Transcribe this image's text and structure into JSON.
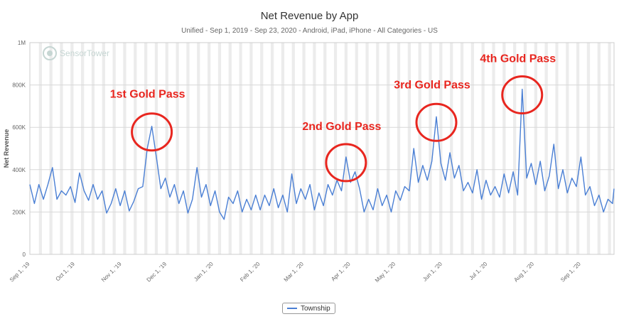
{
  "chart_data": {
    "type": "line",
    "title": "Net Revenue by App",
    "subtitle": "Unified - Sep 1, 2019 - Sep 23, 2020 - Android, iPad, iPhone - All Categories - US",
    "ylabel": "Net Revenue",
    "xlabel": "",
    "ylim": [
      0,
      1000000
    ],
    "yticks": [
      {
        "value": 0,
        "label": "0"
      },
      {
        "value": 200000,
        "label": "200K"
      },
      {
        "value": 400000,
        "label": "400K"
      },
      {
        "value": 600000,
        "label": "600K"
      },
      {
        "value": 800000,
        "label": "800K"
      },
      {
        "value": 1000000,
        "label": "1M"
      }
    ],
    "xlim": [
      "2019-09-01",
      "2020-09-23"
    ],
    "xticks": [
      {
        "date": "2019-09-01",
        "label": "Sep 1, '19"
      },
      {
        "date": "2019-10-01",
        "label": "Oct 1, '19"
      },
      {
        "date": "2019-11-01",
        "label": "Nov 1, '19"
      },
      {
        "date": "2019-12-01",
        "label": "Dec 1, '19"
      },
      {
        "date": "2020-01-01",
        "label": "Jan 1, '20"
      },
      {
        "date": "2020-02-01",
        "label": "Feb 1, '20"
      },
      {
        "date": "2020-03-01",
        "label": "Mar 1, '20"
      },
      {
        "date": "2020-04-01",
        "label": "Apr 1, '20"
      },
      {
        "date": "2020-05-01",
        "label": "May 1, '20"
      },
      {
        "date": "2020-06-01",
        "label": "Jun 1, '20"
      },
      {
        "date": "2020-07-01",
        "label": "Jul 1, '20"
      },
      {
        "date": "2020-08-01",
        "label": "Aug 1, '20"
      },
      {
        "date": "2020-09-01",
        "label": "Sep 1, '20"
      }
    ],
    "grid": true,
    "weekend_bands": true,
    "legend": "bottom-center",
    "series": [
      {
        "name": "Township",
        "color": "#4a7fd4",
        "points": [
          [
            "2019-09-01",
            330000
          ],
          [
            "2019-09-04",
            240000
          ],
          [
            "2019-09-07",
            330000
          ],
          [
            "2019-09-10",
            260000
          ],
          [
            "2019-09-13",
            330000
          ],
          [
            "2019-09-16",
            410000
          ],
          [
            "2019-09-19",
            260000
          ],
          [
            "2019-09-22",
            300000
          ],
          [
            "2019-09-25",
            280000
          ],
          [
            "2019-09-28",
            320000
          ],
          [
            "2019-10-01",
            245000
          ],
          [
            "2019-10-04",
            385000
          ],
          [
            "2019-10-07",
            300000
          ],
          [
            "2019-10-10",
            255000
          ],
          [
            "2019-10-13",
            330000
          ],
          [
            "2019-10-16",
            260000
          ],
          [
            "2019-10-19",
            300000
          ],
          [
            "2019-10-22",
            195000
          ],
          [
            "2019-10-25",
            240000
          ],
          [
            "2019-10-28",
            310000
          ],
          [
            "2019-10-31",
            230000
          ],
          [
            "2019-11-03",
            300000
          ],
          [
            "2019-11-06",
            205000
          ],
          [
            "2019-11-09",
            250000
          ],
          [
            "2019-11-12",
            310000
          ],
          [
            "2019-11-15",
            320000
          ],
          [
            "2019-11-18",
            500000
          ],
          [
            "2019-11-21",
            605000
          ],
          [
            "2019-11-24",
            460000
          ],
          [
            "2019-11-27",
            310000
          ],
          [
            "2019-11-30",
            360000
          ],
          [
            "2019-12-03",
            270000
          ],
          [
            "2019-12-06",
            330000
          ],
          [
            "2019-12-09",
            240000
          ],
          [
            "2019-12-12",
            300000
          ],
          [
            "2019-12-15",
            195000
          ],
          [
            "2019-12-18",
            260000
          ],
          [
            "2019-12-21",
            410000
          ],
          [
            "2019-12-24",
            270000
          ],
          [
            "2019-12-27",
            330000
          ],
          [
            "2019-12-30",
            230000
          ],
          [
            "2020-01-02",
            300000
          ],
          [
            "2020-01-05",
            200000
          ],
          [
            "2020-01-08",
            165000
          ],
          [
            "2020-01-11",
            270000
          ],
          [
            "2020-01-14",
            240000
          ],
          [
            "2020-01-17",
            300000
          ],
          [
            "2020-01-20",
            200000
          ],
          [
            "2020-01-23",
            260000
          ],
          [
            "2020-01-26",
            210000
          ],
          [
            "2020-01-29",
            280000
          ],
          [
            "2020-02-01",
            210000
          ],
          [
            "2020-02-04",
            280000
          ],
          [
            "2020-02-07",
            230000
          ],
          [
            "2020-02-10",
            310000
          ],
          [
            "2020-02-13",
            220000
          ],
          [
            "2020-02-16",
            280000
          ],
          [
            "2020-02-19",
            200000
          ],
          [
            "2020-02-22",
            380000
          ],
          [
            "2020-02-25",
            240000
          ],
          [
            "2020-02-28",
            310000
          ],
          [
            "2020-03-02",
            260000
          ],
          [
            "2020-03-05",
            330000
          ],
          [
            "2020-03-08",
            210000
          ],
          [
            "2020-03-11",
            290000
          ],
          [
            "2020-03-14",
            230000
          ],
          [
            "2020-03-17",
            330000
          ],
          [
            "2020-03-20",
            280000
          ],
          [
            "2020-03-23",
            350000
          ],
          [
            "2020-03-26",
            300000
          ],
          [
            "2020-03-29",
            460000
          ],
          [
            "2020-04-01",
            340000
          ],
          [
            "2020-04-04",
            390000
          ],
          [
            "2020-04-07",
            310000
          ],
          [
            "2020-04-10",
            200000
          ],
          [
            "2020-04-13",
            260000
          ],
          [
            "2020-04-16",
            210000
          ],
          [
            "2020-04-19",
            310000
          ],
          [
            "2020-04-22",
            230000
          ],
          [
            "2020-04-25",
            280000
          ],
          [
            "2020-04-28",
            200000
          ],
          [
            "2020-05-01",
            300000
          ],
          [
            "2020-05-04",
            255000
          ],
          [
            "2020-05-07",
            320000
          ],
          [
            "2020-05-10",
            300000
          ],
          [
            "2020-05-13",
            500000
          ],
          [
            "2020-05-16",
            340000
          ],
          [
            "2020-05-19",
            420000
          ],
          [
            "2020-05-22",
            350000
          ],
          [
            "2020-05-25",
            440000
          ],
          [
            "2020-05-28",
            650000
          ],
          [
            "2020-05-31",
            430000
          ],
          [
            "2020-06-03",
            350000
          ],
          [
            "2020-06-06",
            480000
          ],
          [
            "2020-06-09",
            360000
          ],
          [
            "2020-06-12",
            420000
          ],
          [
            "2020-06-15",
            300000
          ],
          [
            "2020-06-18",
            340000
          ],
          [
            "2020-06-21",
            290000
          ],
          [
            "2020-06-24",
            400000
          ],
          [
            "2020-06-27",
            260000
          ],
          [
            "2020-06-30",
            350000
          ],
          [
            "2020-07-03",
            280000
          ],
          [
            "2020-07-06",
            320000
          ],
          [
            "2020-07-09",
            270000
          ],
          [
            "2020-07-12",
            380000
          ],
          [
            "2020-07-15",
            290000
          ],
          [
            "2020-07-18",
            390000
          ],
          [
            "2020-07-21",
            280000
          ],
          [
            "2020-07-24",
            780000
          ],
          [
            "2020-07-27",
            360000
          ],
          [
            "2020-07-30",
            430000
          ],
          [
            "2020-08-02",
            330000
          ],
          [
            "2020-08-05",
            440000
          ],
          [
            "2020-08-08",
            300000
          ],
          [
            "2020-08-11",
            370000
          ],
          [
            "2020-08-14",
            520000
          ],
          [
            "2020-08-17",
            310000
          ],
          [
            "2020-08-20",
            400000
          ],
          [
            "2020-08-23",
            290000
          ],
          [
            "2020-08-26",
            360000
          ],
          [
            "2020-08-29",
            320000
          ],
          [
            "2020-09-01",
            460000
          ],
          [
            "2020-09-04",
            280000
          ],
          [
            "2020-09-07",
            320000
          ],
          [
            "2020-09-10",
            230000
          ],
          [
            "2020-09-13",
            280000
          ],
          [
            "2020-09-16",
            200000
          ],
          [
            "2020-09-19",
            260000
          ],
          [
            "2020-09-22",
            240000
          ],
          [
            "2020-09-23",
            310000
          ]
        ]
      }
    ],
    "annotations": [
      {
        "text": "1st Gold Pass",
        "date": "2019-11-21",
        "value": 605000,
        "color": "#e8261f"
      },
      {
        "text": "2nd Gold Pass",
        "date": "2020-03-29",
        "value": 460000,
        "color": "#e8261f"
      },
      {
        "text": "3rd Gold Pass",
        "date": "2020-05-28",
        "value": 650000,
        "color": "#e8261f"
      },
      {
        "text": "4th Gold Pass",
        "date": "2020-07-24",
        "value": 780000,
        "color": "#e8261f"
      }
    ],
    "watermark": "SensorTower"
  }
}
